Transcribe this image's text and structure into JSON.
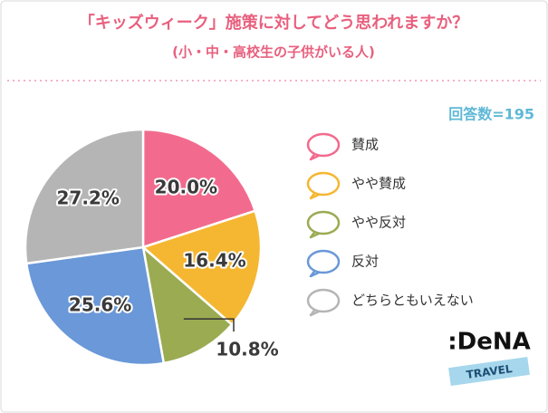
{
  "chart_data": {
    "type": "pie",
    "title": "「キッズウィーク」施策に対してどう思われますか？",
    "subtitle": "(小・中・高校生の子供がいる人)",
    "sample_size": "回答数=195",
    "categories": [
      "賛成",
      "やや賛成",
      "やや反対",
      "反対",
      "どちらともいえない"
    ],
    "values": [
      20.0,
      16.4,
      10.8,
      25.6,
      27.2
    ],
    "value_labels": [
      "20.0%",
      "16.4%",
      "10.8%",
      "25.6%",
      "27.2%"
    ],
    "colors": [
      "#f26b8e",
      "#f5b731",
      "#9aab52",
      "#6a98d8",
      "#b5b5b5"
    ],
    "logo": {
      "brand": ":DeNA",
      "sub": "TRAVEL"
    }
  }
}
